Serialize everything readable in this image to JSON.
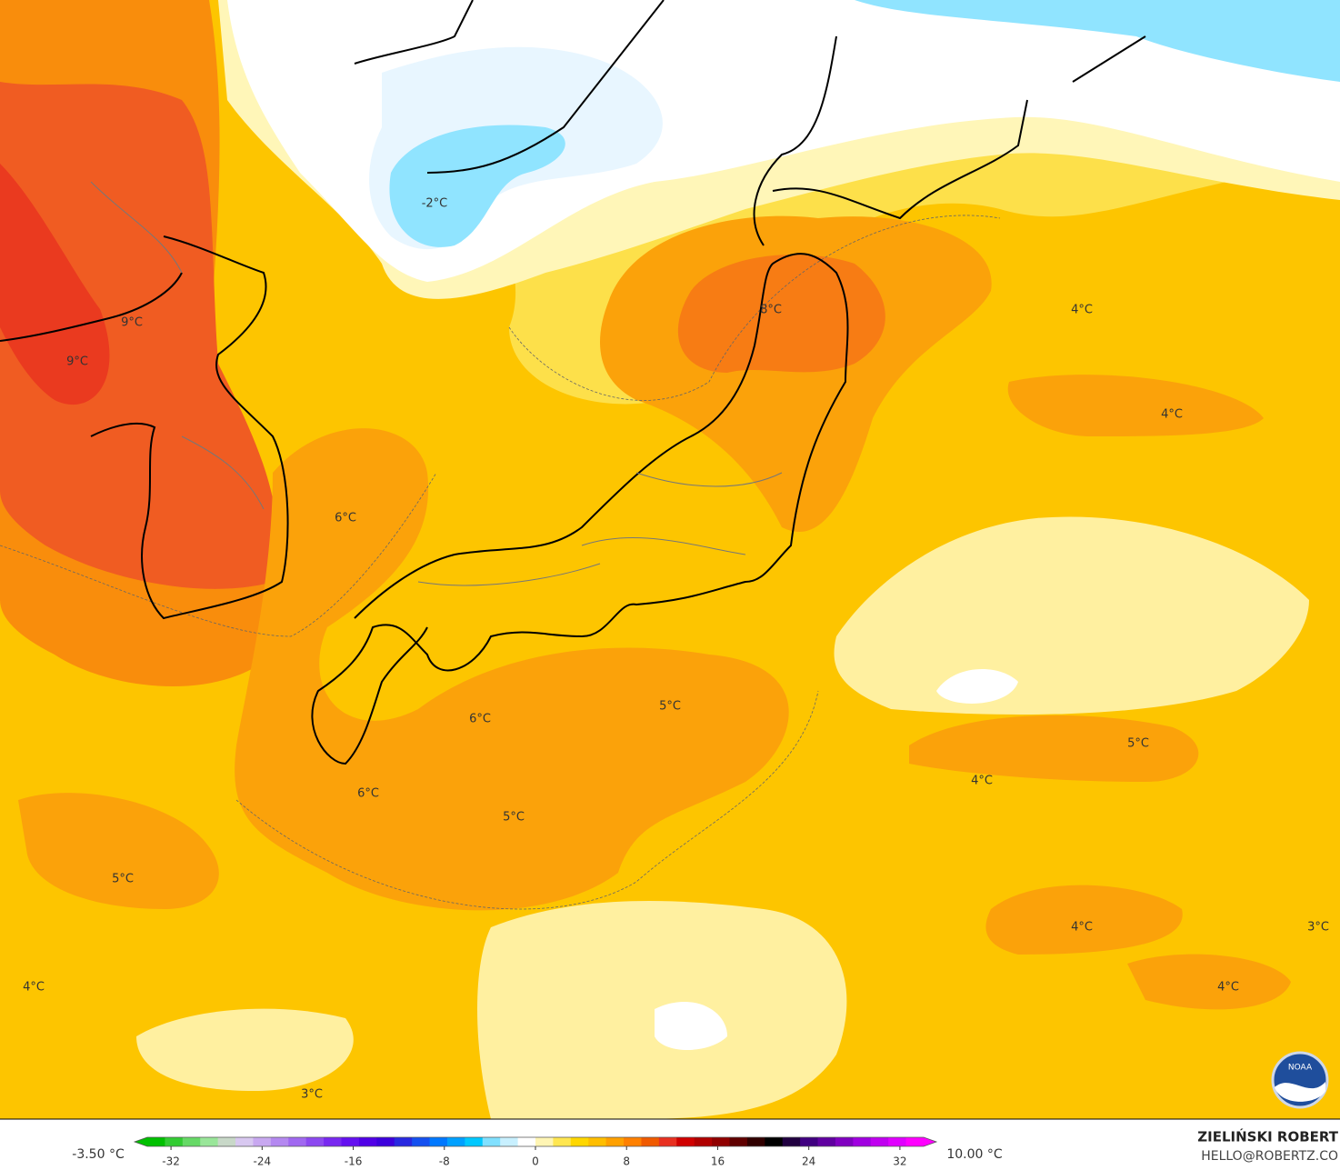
{
  "map": {
    "labels": [
      "-2°C",
      "9°C",
      "9°C",
      "8°C",
      "4°C",
      "4°C",
      "6°C",
      "5°C",
      "6°C",
      "6°C",
      "5°C",
      "5°C",
      "4°C",
      "5°C",
      "4°C",
      "3°C",
      "4°C",
      "4°C",
      "3°C"
    ]
  },
  "colorbar": {
    "min_label": "-3.50 °C",
    "max_label": "10.00 °C",
    "lim": [
      -35.2,
      35.2
    ],
    "ticks": [
      -32,
      -24,
      -16,
      -8,
      0,
      8,
      16,
      24,
      32
    ],
    "colors": [
      "#00c000",
      "#33cc33",
      "#66d966",
      "#99e699",
      "#c8d8c8",
      "#d8c8f0",
      "#c8a8f0",
      "#b488f0",
      "#a068f0",
      "#8c48f0",
      "#7828f0",
      "#6410f0",
      "#5000e6",
      "#3c00dc",
      "#2828e0",
      "#1450f0",
      "#0078ff",
      "#00a0ff",
      "#00c8ff",
      "#80e0ff",
      "#c8f0ff",
      "#ffffff",
      "#fff5b4",
      "#ffe650",
      "#ffd700",
      "#ffbe00",
      "#ffa000",
      "#ff8000",
      "#f05a00",
      "#e83020",
      "#d00000",
      "#b00000",
      "#900000",
      "#600000",
      "#300000",
      "#000000",
      "#200040",
      "#400080",
      "#6000a0",
      "#8000c0",
      "#a000e0",
      "#c000f0",
      "#e000ff",
      "#ff00ff"
    ]
  },
  "credit": {
    "name": "ZIELIŃSKI ROBERT",
    "email": "HELLO@ROBERTZ.CO"
  },
  "logo": "NOAA"
}
